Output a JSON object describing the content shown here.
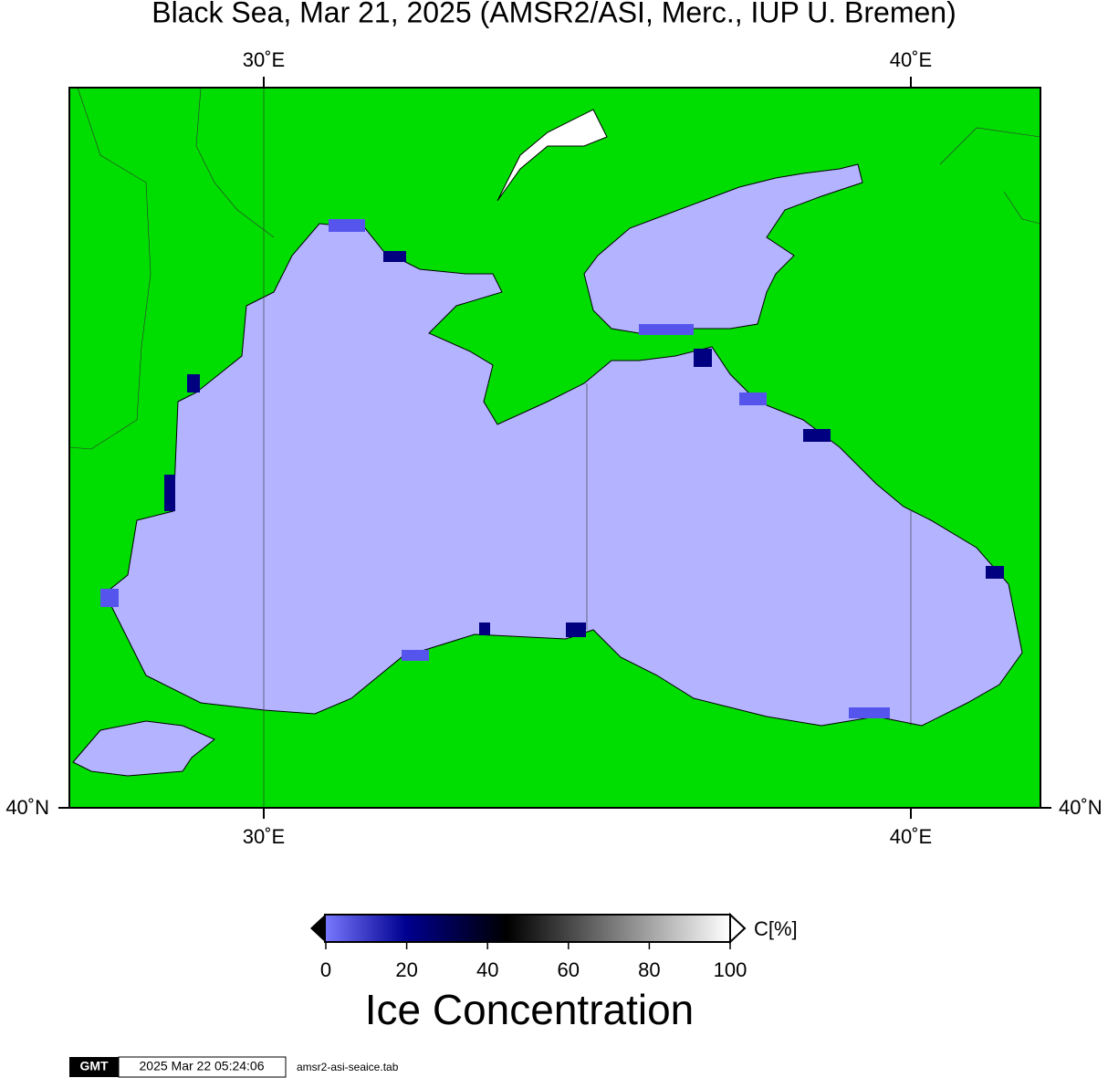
{
  "title": "Black Sea, Mar 21, 2025 (AMSR2/ASI, Merc., IUP U. Bremen)",
  "map": {
    "lon_labels_top": [
      "30˚E",
      "40˚E"
    ],
    "lon_labels_bottom": [
      "30˚E",
      "40˚E"
    ],
    "lat_labels": [
      "40˚N",
      "40˚N"
    ]
  },
  "colorbar": {
    "ticks": [
      0,
      20,
      40,
      60,
      80,
      100
    ],
    "unit": "C[%]",
    "label": "Ice Concentration"
  },
  "footer": {
    "logo": "GMT",
    "timestamp": "2025 Mar 22 05:24:06",
    "file": "amsr2-asi-seaice.tab"
  }
}
